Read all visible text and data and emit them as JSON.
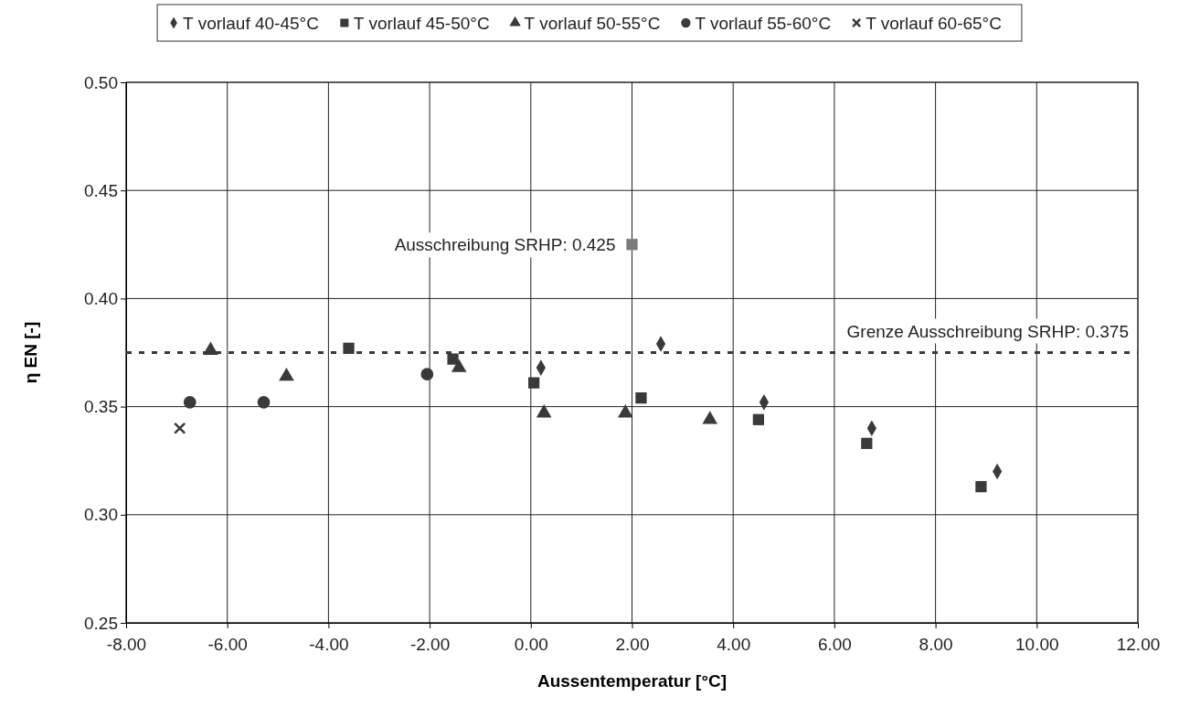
{
  "chart_data": {
    "type": "scatter",
    "xlabel": "Aussentemperatur [°C]",
    "ylabel": "η EN [-]",
    "xlim": [
      -8,
      12
    ],
    "ylim": [
      0.25,
      0.5
    ],
    "xticks": [
      {
        "value": -8,
        "label": "-8.00"
      },
      {
        "value": -6,
        "label": "-6.00"
      },
      {
        "value": -4,
        "label": "-4.00"
      },
      {
        "value": -2,
        "label": "-2.00"
      },
      {
        "value": 0,
        "label": "0.00"
      },
      {
        "value": 2,
        "label": "2.00"
      },
      {
        "value": 4,
        "label": "4.00"
      },
      {
        "value": 6,
        "label": "6.00"
      },
      {
        "value": 8,
        "label": "8.00"
      },
      {
        "value": 10,
        "label": "10.00"
      },
      {
        "value": 12,
        "label": "12.00"
      }
    ],
    "yticks": [
      {
        "value": 0.25,
        "label": "0.25"
      },
      {
        "value": 0.3,
        "label": "0.30"
      },
      {
        "value": 0.35,
        "label": "0.35"
      },
      {
        "value": 0.4,
        "label": "0.40"
      },
      {
        "value": 0.45,
        "label": "0.45"
      },
      {
        "value": 0.5,
        "label": "0.50"
      }
    ],
    "grid": true,
    "legend": "top",
    "series": [
      {
        "name": "T vorlauf 40-45°C",
        "color": "#3a3a3a",
        "marker": "diamond",
        "x": [
          0.2,
          2.57,
          4.61,
          6.74,
          9.22
        ],
        "values": [
          0.368,
          0.379,
          0.352,
          0.34,
          0.32
        ]
      },
      {
        "name": "T vorlauf 45-50°C",
        "color": "#3a3a3a",
        "marker": "square",
        "x": [
          -3.6,
          -1.54,
          0.06,
          2.18,
          4.5,
          6.64,
          8.9
        ],
        "values": [
          0.377,
          0.372,
          0.361,
          0.354,
          0.344,
          0.333,
          0.313
        ]
      },
      {
        "name": "T vorlauf 50-55°C",
        "color": "#3a3a3a",
        "marker": "triangle",
        "x": [
          -6.33,
          -4.83,
          -1.42,
          0.26,
          1.87,
          3.54
        ],
        "values": [
          0.376,
          0.364,
          0.368,
          0.347,
          0.347,
          0.344
        ]
      },
      {
        "name": "T vorlauf 55-60°C",
        "color": "#3a3a3a",
        "marker": "circle",
        "x": [
          -6.74,
          -5.28,
          -2.05
        ],
        "values": [
          0.352,
          0.352,
          0.365
        ]
      },
      {
        "name": "T vorlauf 60-65°C",
        "color": "#3a3a3a",
        "marker": "cross",
        "x": [
          -6.94
        ],
        "values": [
          0.34
        ]
      },
      {
        "color": "#7a7a7a",
        "marker": "square",
        "x": [
          2.0
        ],
        "values": [
          0.425
        ]
      }
    ],
    "ref_lines": [
      {
        "axis": "y",
        "value": 0.375,
        "label": "Grenze Ausschreibung SRHP: 0.375",
        "color": "#3a3a3a",
        "line_style": "dashed"
      }
    ],
    "annotations": [
      {
        "text": "Ausschreibung SRHP: 0.425",
        "x": 2.0,
        "y": 0.425
      }
    ]
  }
}
